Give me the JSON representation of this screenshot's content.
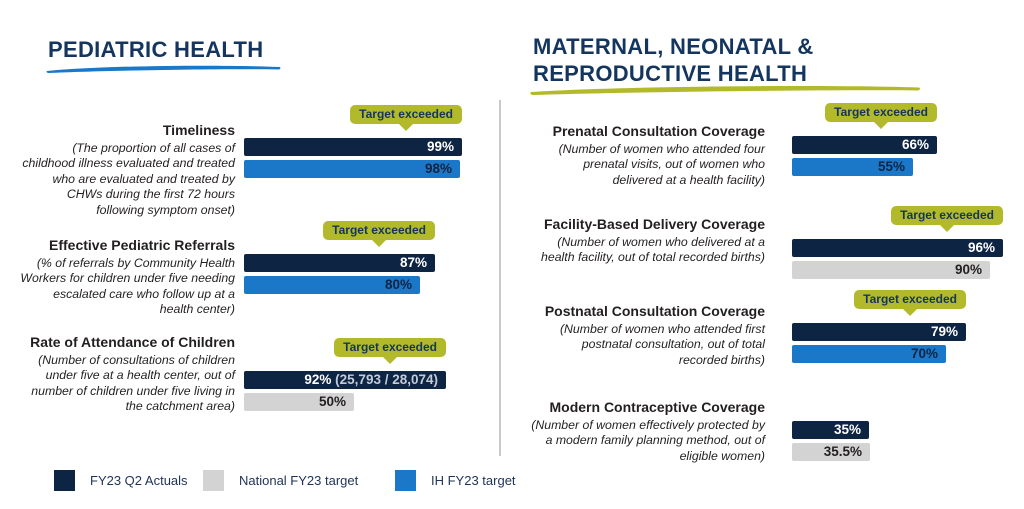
{
  "badge_label": "Target exceeded",
  "colors": {
    "actuals_navy": "#0e2443",
    "ih_blue": "#1b78c9",
    "national_gray": "#d3d3d3",
    "badge_olive": "#b2ba2b",
    "heading_navy": "#14355e",
    "body_text": "#231f20"
  },
  "legend": {
    "items": [
      {
        "label": "FY23 Q2 Actuals",
        "type": "actual",
        "color": "#0e2443"
      },
      {
        "label": "National FY23 target",
        "type": "national",
        "color": "#d3d3d3"
      },
      {
        "label": "IH FY23 target",
        "type": "ih",
        "color": "#1b78c9"
      }
    ]
  },
  "chart_data": [
    {
      "type": "bar",
      "orientation": "horizontal",
      "title": "PEDIATRIC HEALTH",
      "underline_color": "#1b78c9",
      "value_axis_max": 100,
      "data_labels": "inside-right",
      "metrics": [
        {
          "title": "Timeliness",
          "desc": "(The proportion of all cases of childhood illness evaluated and treated who are evaluated and treated by CHWs during the first 72 hours following symptom onset)",
          "target_exceeded": true,
          "bars": [
            {
              "series": "FY23 Q2 Actuals",
              "type": "actual",
              "value": 99,
              "label": "99%"
            },
            {
              "series": "IH FY23 target",
              "type": "ih",
              "value": 98,
              "label": "98%"
            }
          ]
        },
        {
          "title": "Effective Pediatric Referrals",
          "desc": "(% of referrals by Community Health Workers for children under five needing escalated care who follow up at a health center)",
          "target_exceeded": true,
          "bars": [
            {
              "series": "FY23 Q2 Actuals",
              "type": "actual",
              "value": 87,
              "label": "87%"
            },
            {
              "series": "IH FY23 target",
              "type": "ih",
              "value": 80,
              "label": "80%"
            }
          ]
        },
        {
          "title": "Rate of Attendance of Children",
          "desc": "(Number of consultations of children under five at a health center, out of number of children under five living in the catchment area)",
          "target_exceeded": true,
          "bars": [
            {
              "series": "FY23 Q2 Actuals",
              "type": "actual",
              "value": 92,
              "label": "92%",
              "sublabel": "(25,793 / 28,074)"
            },
            {
              "series": "National FY23 target",
              "type": "national",
              "value": 50,
              "label": "50%"
            }
          ]
        }
      ]
    },
    {
      "type": "bar",
      "orientation": "horizontal",
      "title": "MATERNAL, NEONATAL & REPRODUCTIVE HEALTH",
      "title_lines": [
        "MATERNAL, NEONATAL &",
        "REPRODUCTIVE HEALTH"
      ],
      "underline_color": "#b2ba2b",
      "value_axis_max": 100,
      "data_labels": "inside-right",
      "metrics": [
        {
          "title": "Prenatal Consultation Coverage",
          "desc": "(Number of women who attended four prenatal visits, out of women who delivered at a health facility)",
          "target_exceeded": true,
          "bars": [
            {
              "series": "FY23 Q2 Actuals",
              "type": "actual",
              "value": 66,
              "label": "66%"
            },
            {
              "series": "IH FY23 target",
              "type": "ih",
              "value": 55,
              "label": "55%"
            }
          ]
        },
        {
          "title": "Facility-Based Delivery Coverage",
          "desc": "(Number of women who delivered at a health facility, out of total recorded births)",
          "target_exceeded": true,
          "bars": [
            {
              "series": "FY23 Q2 Actuals",
              "type": "actual",
              "value": 96,
              "label": "96%"
            },
            {
              "series": "National FY23 target",
              "type": "national",
              "value": 90,
              "label": "90%"
            }
          ]
        },
        {
          "title": "Postnatal Consultation Coverage",
          "desc": "(Number of women who attended first postnatal consultation, out of total recorded births)",
          "target_exceeded": true,
          "bars": [
            {
              "series": "FY23 Q2 Actuals",
              "type": "actual",
              "value": 79,
              "label": "79%"
            },
            {
              "series": "IH FY23 target",
              "type": "ih",
              "value": 70,
              "label": "70%"
            }
          ]
        },
        {
          "title": "Modern Contraceptive Coverage",
          "desc": "(Number of women effectively protected by a modern family planning method, out of eligible women)",
          "target_exceeded": false,
          "bars": [
            {
              "series": "FY23 Q2 Actuals",
              "type": "actual",
              "value": 35,
              "label": "35%"
            },
            {
              "series": "National FY23 target",
              "type": "national",
              "value": 35.5,
              "label": "35.5%"
            }
          ]
        }
      ]
    }
  ]
}
